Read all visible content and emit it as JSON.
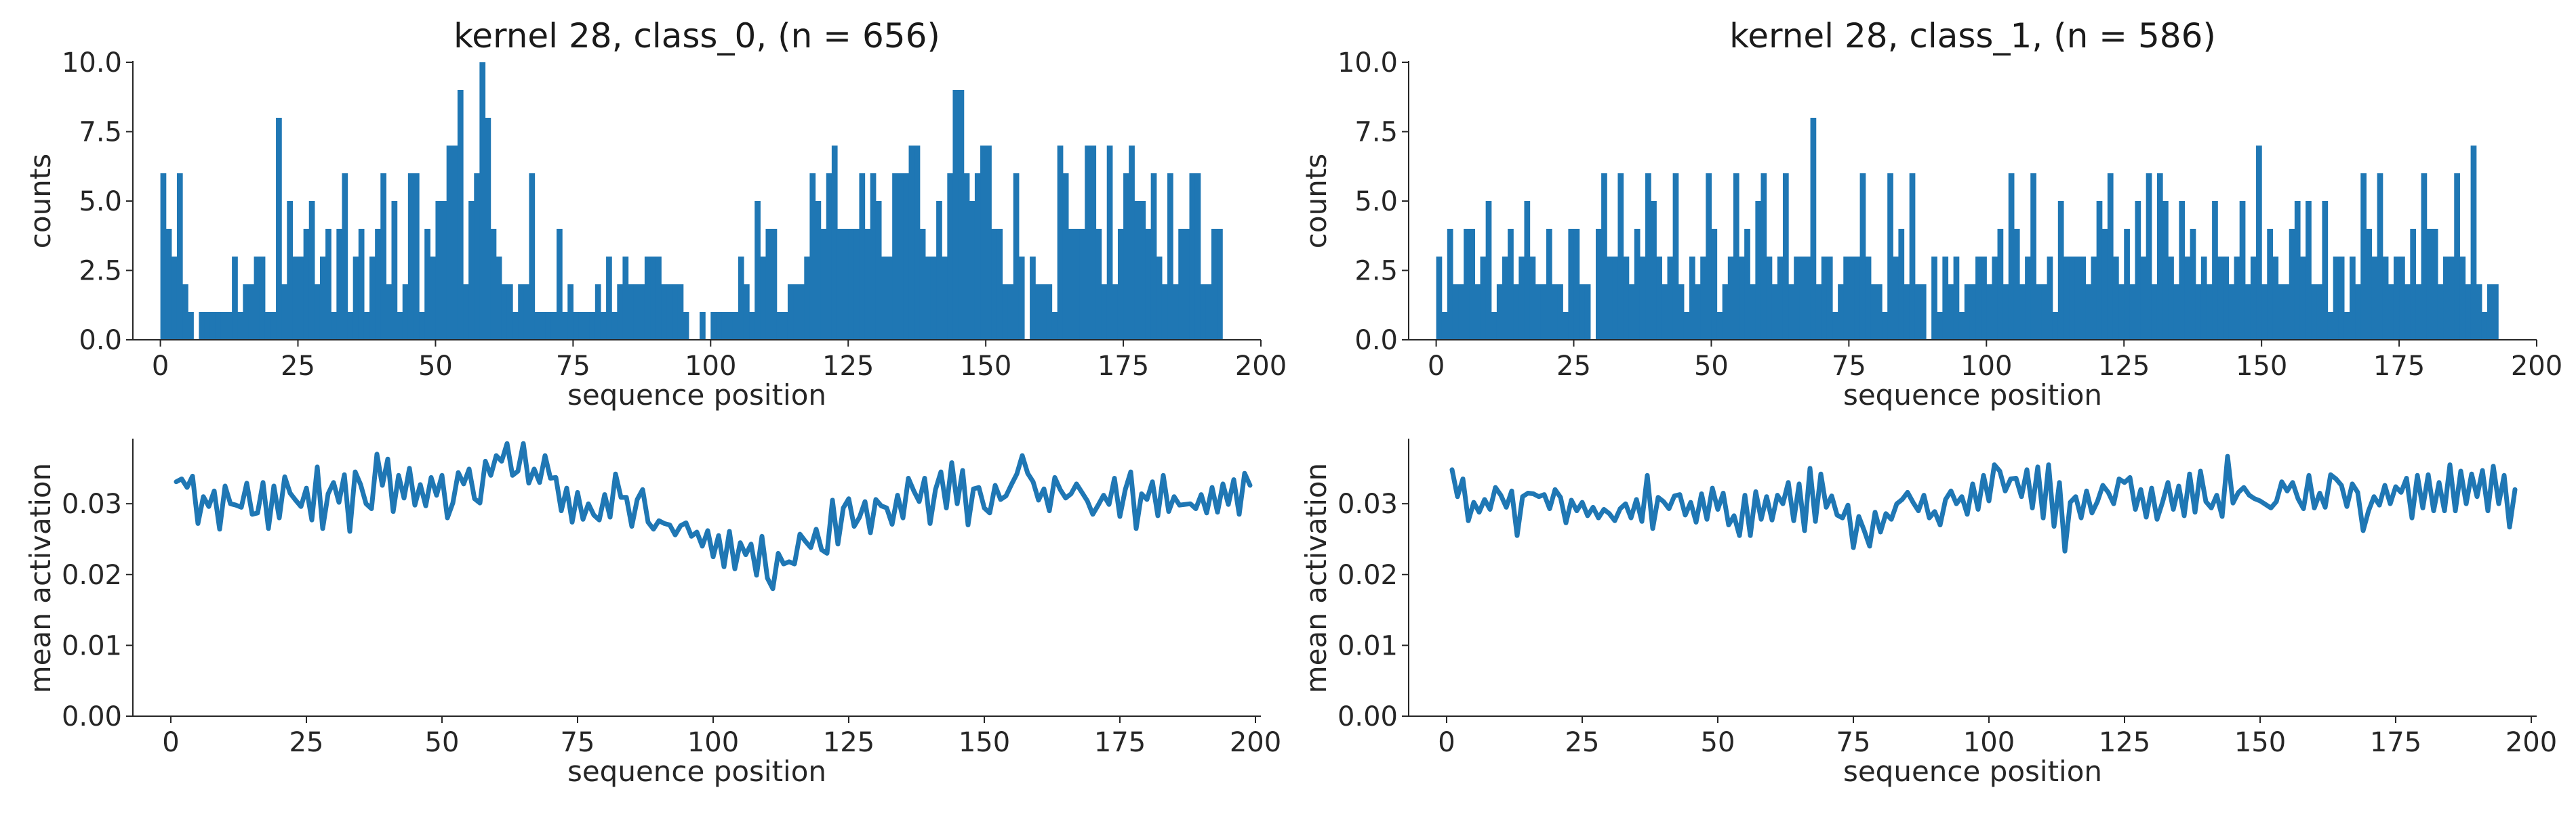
{
  "chart_data": [
    {
      "type": "bar",
      "title": "kernel 28, class_0, (n = 656)",
      "xlabel": "sequence position",
      "ylabel": "counts",
      "xlim": [
        -5,
        200
      ],
      "ylim": [
        0,
        10
      ],
      "xticks": [
        0,
        25,
        50,
        75,
        100,
        125,
        150,
        175,
        200
      ],
      "yticks": [
        0.0,
        2.5,
        5.0,
        7.5,
        10.0
      ],
      "ytick_labels": [
        "0.0",
        "2.5",
        "5.0",
        "7.5",
        "10.0"
      ],
      "grid": false,
      "color": "#1f77b4",
      "x": [
        0,
        1,
        2,
        3,
        4,
        5,
        6,
        7,
        8,
        9,
        10,
        11,
        12,
        13,
        14,
        15,
        16,
        17,
        18,
        19,
        20,
        21,
        22,
        23,
        24,
        25,
        26,
        27,
        28,
        29,
        30,
        31,
        32,
        33,
        34,
        35,
        36,
        37,
        38,
        39,
        40,
        41,
        42,
        43,
        44,
        45,
        46,
        47,
        48,
        49,
        50,
        51,
        52,
        53,
        54,
        55,
        56,
        57,
        58,
        59,
        60,
        61,
        62,
        63,
        64,
        65,
        66,
        67,
        68,
        69,
        70,
        71,
        72,
        73,
        74,
        75,
        76,
        77,
        78,
        79,
        80,
        81,
        82,
        83,
        84,
        85,
        86,
        87,
        88,
        89,
        90,
        91,
        92,
        93,
        94,
        95,
        96,
        97,
        98,
        99,
        100,
        101,
        102,
        103,
        104,
        105,
        106,
        107,
        108,
        109,
        110,
        111,
        112,
        113,
        114,
        115,
        116,
        117,
        118,
        119,
        120,
        121,
        122,
        123,
        124,
        125,
        126,
        127,
        128,
        129,
        130,
        131,
        132,
        133,
        134,
        135,
        136,
        137,
        138,
        139,
        140,
        141,
        142,
        143,
        144,
        145,
        146,
        147,
        148,
        149,
        150,
        151,
        152,
        153,
        154,
        155,
        156,
        157,
        158,
        159,
        160,
        161,
        162,
        163,
        164,
        165,
        166,
        167,
        168,
        169,
        170,
        171,
        172,
        173,
        174,
        175,
        176,
        177,
        178,
        179,
        180,
        181,
        182,
        183,
        184,
        185,
        186,
        187,
        188,
        189,
        190,
        191,
        192
      ],
      "values": [
        6,
        4,
        3,
        6,
        2,
        1,
        0,
        1,
        1,
        1,
        1,
        1,
        1,
        3,
        1,
        2,
        2,
        3,
        3,
        1,
        1,
        8,
        2,
        5,
        3,
        3,
        4,
        5,
        2,
        3,
        4,
        1,
        4,
        6,
        1,
        3,
        4,
        1,
        3,
        4,
        6,
        2,
        5,
        1,
        2,
        6,
        6,
        1,
        4,
        3,
        5,
        5,
        7,
        7,
        9,
        2,
        5,
        6,
        10,
        8,
        4,
        3,
        2,
        2,
        1,
        2,
        2,
        6,
        1,
        1,
        1,
        1,
        4,
        1,
        2,
        1,
        1,
        1,
        1,
        2,
        1,
        3,
        1,
        2,
        3,
        2,
        2,
        2,
        3,
        3,
        3,
        2,
        2,
        2,
        2,
        1,
        0,
        0,
        1,
        0,
        1,
        1,
        1,
        1,
        1,
        3,
        2,
        1,
        5,
        3,
        4,
        4,
        1,
        1,
        2,
        2,
        2,
        3,
        6,
        5,
        4,
        6,
        7,
        4,
        4,
        4,
        4,
        6,
        4,
        6,
        5,
        3,
        3,
        6,
        6,
        6,
        7,
        7,
        4,
        3,
        3,
        5,
        3,
        6,
        9,
        9,
        6,
        5,
        6,
        7,
        7,
        4,
        4,
        2,
        2,
        6,
        3,
        0,
        3,
        2,
        2,
        2,
        1,
        7,
        6,
        4,
        4,
        4,
        7,
        7,
        4,
        2,
        7,
        2,
        4,
        6,
        7,
        5,
        5,
        4,
        6,
        3,
        2,
        6,
        2,
        4,
        4,
        6,
        6,
        2,
        2,
        4,
        4
      ]
    },
    {
      "type": "bar",
      "title": "kernel 28, class_1, (n = 586)",
      "xlabel": "sequence position",
      "ylabel": "counts",
      "xlim": [
        -5,
        200
      ],
      "ylim": [
        0,
        10
      ],
      "xticks": [
        0,
        25,
        50,
        75,
        100,
        125,
        150,
        175,
        200
      ],
      "yticks": [
        0.0,
        2.5,
        5.0,
        7.5,
        10.0
      ],
      "ytick_labels": [
        "0.0",
        "2.5",
        "5.0",
        "7.5",
        "10.0"
      ],
      "grid": false,
      "color": "#1f77b4",
      "x": [
        0,
        1,
        2,
        3,
        4,
        5,
        6,
        7,
        8,
        9,
        10,
        11,
        12,
        13,
        14,
        15,
        16,
        17,
        18,
        19,
        20,
        21,
        22,
        23,
        24,
        25,
        26,
        27,
        28,
        29,
        30,
        31,
        32,
        33,
        34,
        35,
        36,
        37,
        38,
        39,
        40,
        41,
        42,
        43,
        44,
        45,
        46,
        47,
        48,
        49,
        50,
        51,
        52,
        53,
        54,
        55,
        56,
        57,
        58,
        59,
        60,
        61,
        62,
        63,
        64,
        65,
        66,
        67,
        68,
        69,
        70,
        71,
        72,
        73,
        74,
        75,
        76,
        77,
        78,
        79,
        80,
        81,
        82,
        83,
        84,
        85,
        86,
        87,
        88,
        89,
        90,
        91,
        92,
        93,
        94,
        95,
        96,
        97,
        98,
        99,
        100,
        101,
        102,
        103,
        104,
        105,
        106,
        107,
        108,
        109,
        110,
        111,
        112,
        113,
        114,
        115,
        116,
        117,
        118,
        119,
        120,
        121,
        122,
        123,
        124,
        125,
        126,
        127,
        128,
        129,
        130,
        131,
        132,
        133,
        134,
        135,
        136,
        137,
        138,
        139,
        140,
        141,
        142,
        143,
        144,
        145,
        146,
        147,
        148,
        149,
        150,
        151,
        152,
        153,
        154,
        155,
        156,
        157,
        158,
        159,
        160,
        161,
        162,
        163,
        164,
        165,
        166,
        167,
        168,
        169,
        170,
        171,
        172,
        173,
        174,
        175,
        176,
        177,
        178,
        179,
        180,
        181,
        182,
        183,
        184,
        185,
        186,
        187,
        188,
        189,
        190,
        191,
        192
      ],
      "values": [
        3,
        1,
        4,
        2,
        2,
        4,
        4,
        2,
        3,
        5,
        1,
        2,
        3,
        4,
        2,
        3,
        5,
        3,
        2,
        2,
        4,
        2,
        2,
        1,
        4,
        4,
        2,
        2,
        0,
        4,
        6,
        3,
        3,
        6,
        3,
        2,
        4,
        3,
        6,
        5,
        3,
        2,
        3,
        6,
        2,
        1,
        3,
        2,
        3,
        6,
        4,
        1,
        2,
        3,
        6,
        3,
        4,
        2,
        5,
        6,
        3,
        2,
        3,
        6,
        2,
        3,
        3,
        3,
        8,
        2,
        3,
        3,
        1,
        2,
        3,
        3,
        3,
        6,
        3,
        2,
        2,
        1,
        6,
        3,
        4,
        2,
        6,
        2,
        2,
        0,
        3,
        1,
        3,
        2,
        3,
        1,
        2,
        2,
        3,
        3,
        2,
        3,
        4,
        2,
        6,
        4,
        2,
        3,
        6,
        2,
        2,
        3,
        1,
        5,
        3,
        3,
        3,
        3,
        2,
        3,
        5,
        4,
        6,
        3,
        2,
        4,
        2,
        5,
        3,
        6,
        2,
        6,
        5,
        3,
        2,
        5,
        3,
        4,
        2,
        3,
        2,
        5,
        3,
        3,
        2,
        3,
        5,
        2,
        3,
        7,
        2,
        4,
        3,
        2,
        2,
        4,
        5,
        3,
        5,
        2,
        2,
        5,
        1,
        3,
        3,
        1,
        3,
        2,
        6,
        4,
        3,
        6,
        3,
        2,
        3,
        3,
        2,
        4,
        2,
        6,
        4,
        4,
        2,
        3,
        3,
        6,
        3,
        2,
        7,
        2,
        1,
        2,
        2
      ]
    },
    {
      "type": "line",
      "title": "",
      "xlabel": "sequence position",
      "ylabel": "mean activation",
      "xlim": [
        -7,
        201
      ],
      "ylim": [
        0,
        0.039
      ],
      "xticks": [
        0,
        25,
        50,
        75,
        100,
        125,
        150,
        175,
        200
      ],
      "yticks": [
        0.0,
        0.01,
        0.02,
        0.03
      ],
      "ytick_labels": [
        "0.00",
        "0.01",
        "0.02",
        "0.03"
      ],
      "grid": false,
      "color": "#1f77b4",
      "x_start": 1,
      "x_step": 1,
      "values": [
        0.0331,
        0.0335,
        0.0323,
        0.0339,
        0.0272,
        0.031,
        0.0296,
        0.0318,
        0.0264,
        0.0325,
        0.03,
        0.0298,
        0.0295,
        0.0329,
        0.0285,
        0.0287,
        0.033,
        0.0265,
        0.0325,
        0.028,
        0.0338,
        0.0315,
        0.0305,
        0.0296,
        0.0322,
        0.0277,
        0.0352,
        0.0265,
        0.0314,
        0.033,
        0.0302,
        0.0341,
        0.0261,
        0.0345,
        0.0327,
        0.03,
        0.0293,
        0.037,
        0.0326,
        0.0363,
        0.0289,
        0.034,
        0.0308,
        0.035,
        0.0298,
        0.0327,
        0.0297,
        0.0337,
        0.0312,
        0.034,
        0.028,
        0.0301,
        0.0344,
        0.0328,
        0.0349,
        0.0307,
        0.0301,
        0.036,
        0.034,
        0.0368,
        0.036,
        0.0385,
        0.034,
        0.0346,
        0.0385,
        0.0329,
        0.0349,
        0.033,
        0.0368,
        0.0336,
        0.0337,
        0.029,
        0.0322,
        0.0274,
        0.0316,
        0.0278,
        0.03,
        0.0284,
        0.0277,
        0.0313,
        0.0281,
        0.0342,
        0.0309,
        0.0309,
        0.0268,
        0.0306,
        0.032,
        0.0274,
        0.0264,
        0.0276,
        0.0272,
        0.027,
        0.0256,
        0.0269,
        0.0273,
        0.0254,
        0.026,
        0.024,
        0.0262,
        0.0225,
        0.0255,
        0.0211,
        0.0261,
        0.0208,
        0.0245,
        0.0228,
        0.0243,
        0.0199,
        0.0254,
        0.0195,
        0.018,
        0.023,
        0.0215,
        0.0218,
        0.0215,
        0.0257,
        0.0247,
        0.0238,
        0.0264,
        0.0235,
        0.023,
        0.0305,
        0.0243,
        0.0294,
        0.0307,
        0.0268,
        0.0281,
        0.0303,
        0.0259,
        0.0306,
        0.0297,
        0.0294,
        0.0271,
        0.0312,
        0.028,
        0.0336,
        0.0318,
        0.0303,
        0.0336,
        0.0272,
        0.032,
        0.0345,
        0.0294,
        0.0358,
        0.03,
        0.0347,
        0.027,
        0.0321,
        0.0323,
        0.0294,
        0.0287,
        0.0326,
        0.0306,
        0.0311,
        0.0327,
        0.0342,
        0.0368,
        0.0343,
        0.0331,
        0.0305,
        0.0321,
        0.029,
        0.0337,
        0.032,
        0.0308,
        0.0314,
        0.0328,
        0.0316,
        0.0304,
        0.0285,
        0.0298,
        0.0312,
        0.0299,
        0.0336,
        0.0282,
        0.032,
        0.0345,
        0.0265,
        0.0314,
        0.0306,
        0.0331,
        0.0283,
        0.034,
        0.0289,
        0.031,
        0.0298,
        0.0299,
        0.03,
        0.0293,
        0.0313,
        0.0287,
        0.0323,
        0.0288,
        0.0328,
        0.0299,
        0.0334,
        0.0285,
        0.0343,
        0.0326
      ]
    },
    {
      "type": "line",
      "title": "",
      "xlabel": "sequence position",
      "ylabel": "mean activation",
      "xlim": [
        -7,
        201
      ],
      "ylim": [
        0,
        0.039
      ],
      "xticks": [
        0,
        25,
        50,
        75,
        100,
        125,
        150,
        175,
        200
      ],
      "yticks": [
        0.0,
        0.01,
        0.02,
        0.03
      ],
      "ytick_labels": [
        "0.00",
        "0.01",
        "0.02",
        "0.03"
      ],
      "grid": false,
      "color": "#1f77b4",
      "x_start": 1,
      "x_step": 1,
      "values": [
        0.0348,
        0.031,
        0.0335,
        0.0276,
        0.0302,
        0.0288,
        0.0306,
        0.0292,
        0.0323,
        0.0312,
        0.0295,
        0.0318,
        0.0255,
        0.031,
        0.0315,
        0.0314,
        0.031,
        0.0313,
        0.0293,
        0.032,
        0.0309,
        0.0273,
        0.0305,
        0.029,
        0.0302,
        0.0283,
        0.0295,
        0.028,
        0.0292,
        0.0286,
        0.0276,
        0.0293,
        0.03,
        0.028,
        0.0306,
        0.0275,
        0.034,
        0.0265,
        0.0309,
        0.0303,
        0.0293,
        0.0311,
        0.0313,
        0.0284,
        0.0302,
        0.0274,
        0.0314,
        0.0278,
        0.0322,
        0.0292,
        0.0315,
        0.027,
        0.0283,
        0.0255,
        0.0312,
        0.0255,
        0.0317,
        0.0278,
        0.031,
        0.0277,
        0.0312,
        0.03,
        0.033,
        0.0276,
        0.0328,
        0.0262,
        0.035,
        0.0275,
        0.0342,
        0.0295,
        0.0311,
        0.0284,
        0.028,
        0.0298,
        0.0238,
        0.0282,
        0.0262,
        0.024,
        0.0288,
        0.026,
        0.0286,
        0.0278,
        0.03,
        0.0306,
        0.0316,
        0.0302,
        0.029,
        0.0312,
        0.028,
        0.0289,
        0.027,
        0.0306,
        0.0318,
        0.03,
        0.031,
        0.0285,
        0.0328,
        0.0292,
        0.034,
        0.0304,
        0.0355,
        0.0346,
        0.0318,
        0.0335,
        0.0336,
        0.031,
        0.0348,
        0.0294,
        0.0352,
        0.028,
        0.0355,
        0.0268,
        0.033,
        0.0233,
        0.0302,
        0.031,
        0.028,
        0.0318,
        0.0287,
        0.0303,
        0.0326,
        0.0316,
        0.03,
        0.0335,
        0.033,
        0.0337,
        0.0292,
        0.032,
        0.0281,
        0.0322,
        0.0278,
        0.0302,
        0.033,
        0.0292,
        0.0325,
        0.0283,
        0.0342,
        0.0288,
        0.0346,
        0.0303,
        0.0294,
        0.0312,
        0.0282,
        0.0367,
        0.0301,
        0.0316,
        0.0323,
        0.0312,
        0.0307,
        0.0304,
        0.0299,
        0.0294,
        0.0303,
        0.0331,
        0.0318,
        0.033,
        0.0307,
        0.0293,
        0.034,
        0.0294,
        0.0315,
        0.0295,
        0.0341,
        0.0335,
        0.0326,
        0.0296,
        0.0328,
        0.0316,
        0.0262,
        0.029,
        0.031,
        0.0298,
        0.0326,
        0.03,
        0.0324,
        0.0316,
        0.0336,
        0.028,
        0.034,
        0.0294,
        0.0341,
        0.029,
        0.033,
        0.029,
        0.0355,
        0.029,
        0.0346,
        0.03,
        0.0342,
        0.031,
        0.0347,
        0.029,
        0.0353,
        0.03,
        0.034,
        0.0267,
        0.032
      ]
    }
  ]
}
